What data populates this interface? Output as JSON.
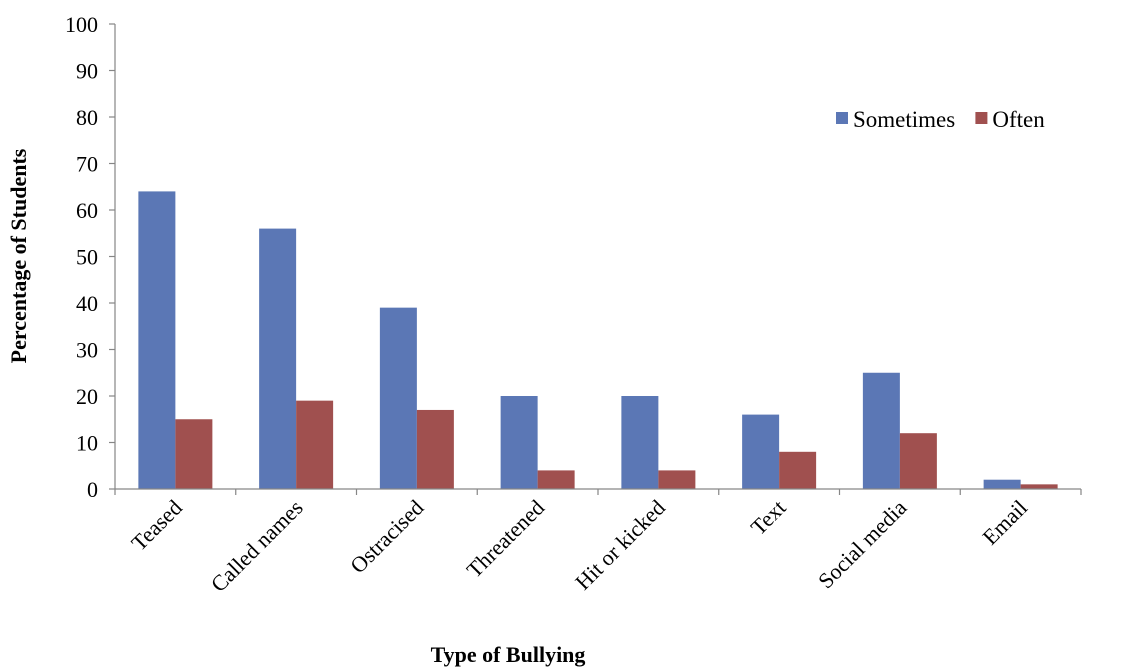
{
  "chart_data": {
    "type": "bar",
    "title": "",
    "xlabel": "Type of Bullying",
    "ylabel": "Percentage of  Students",
    "ylim": [
      0,
      100
    ],
    "yticks": [
      0,
      10,
      20,
      30,
      40,
      50,
      60,
      70,
      80,
      90,
      100
    ],
    "grid": false,
    "legend_position": "top-right",
    "categories": [
      "Teased",
      "Called names",
      "Ostracised",
      "Threatened",
      "Hit or kicked",
      "Text",
      "Social media",
      "Email"
    ],
    "series": [
      {
        "name": "Sometimes",
        "color": "#5B77B5",
        "values": [
          64,
          56,
          39,
          20,
          20,
          16,
          25,
          2
        ]
      },
      {
        "name": "Often",
        "color": "#A0504F",
        "values": [
          15,
          19,
          17,
          4,
          4,
          8,
          12,
          1
        ]
      }
    ]
  }
}
